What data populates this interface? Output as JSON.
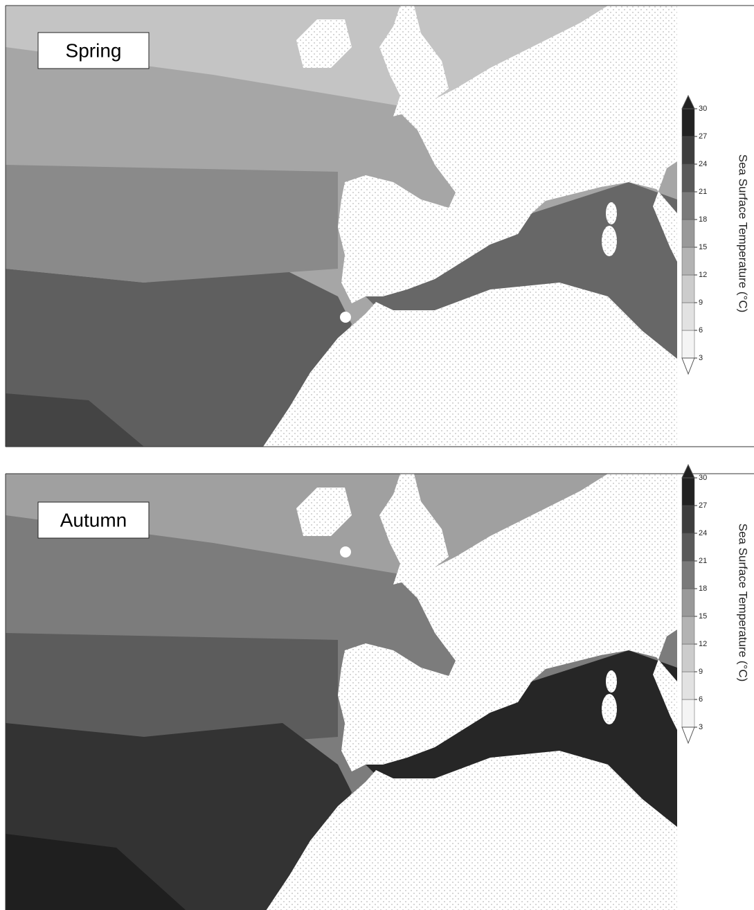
{
  "panels": [
    {
      "label": "Spring",
      "colorbar": {
        "label": "Sea Surface Temperature (°C)",
        "ticks": [
          3,
          6,
          9,
          12,
          15,
          18,
          21,
          24,
          27,
          30
        ],
        "colors": [
          "#f4f4f4",
          "#e2e2e2",
          "#cccccc",
          "#b3b3b3",
          "#999999",
          "#7a7a7a",
          "#5a5a5a",
          "#3e3e3e",
          "#222222"
        ]
      }
    },
    {
      "label": "Autumn",
      "colorbar": {
        "label": "Sea Surface Temperature (°C)",
        "ticks": [
          3,
          6,
          9,
          12,
          15,
          18,
          21,
          24,
          27,
          30
        ],
        "colors": [
          "#f4f4f4",
          "#e2e2e2",
          "#cccccc",
          "#b3b3b3",
          "#999999",
          "#7a7a7a",
          "#5a5a5a",
          "#3e3e3e",
          "#222222"
        ]
      }
    }
  ]
}
